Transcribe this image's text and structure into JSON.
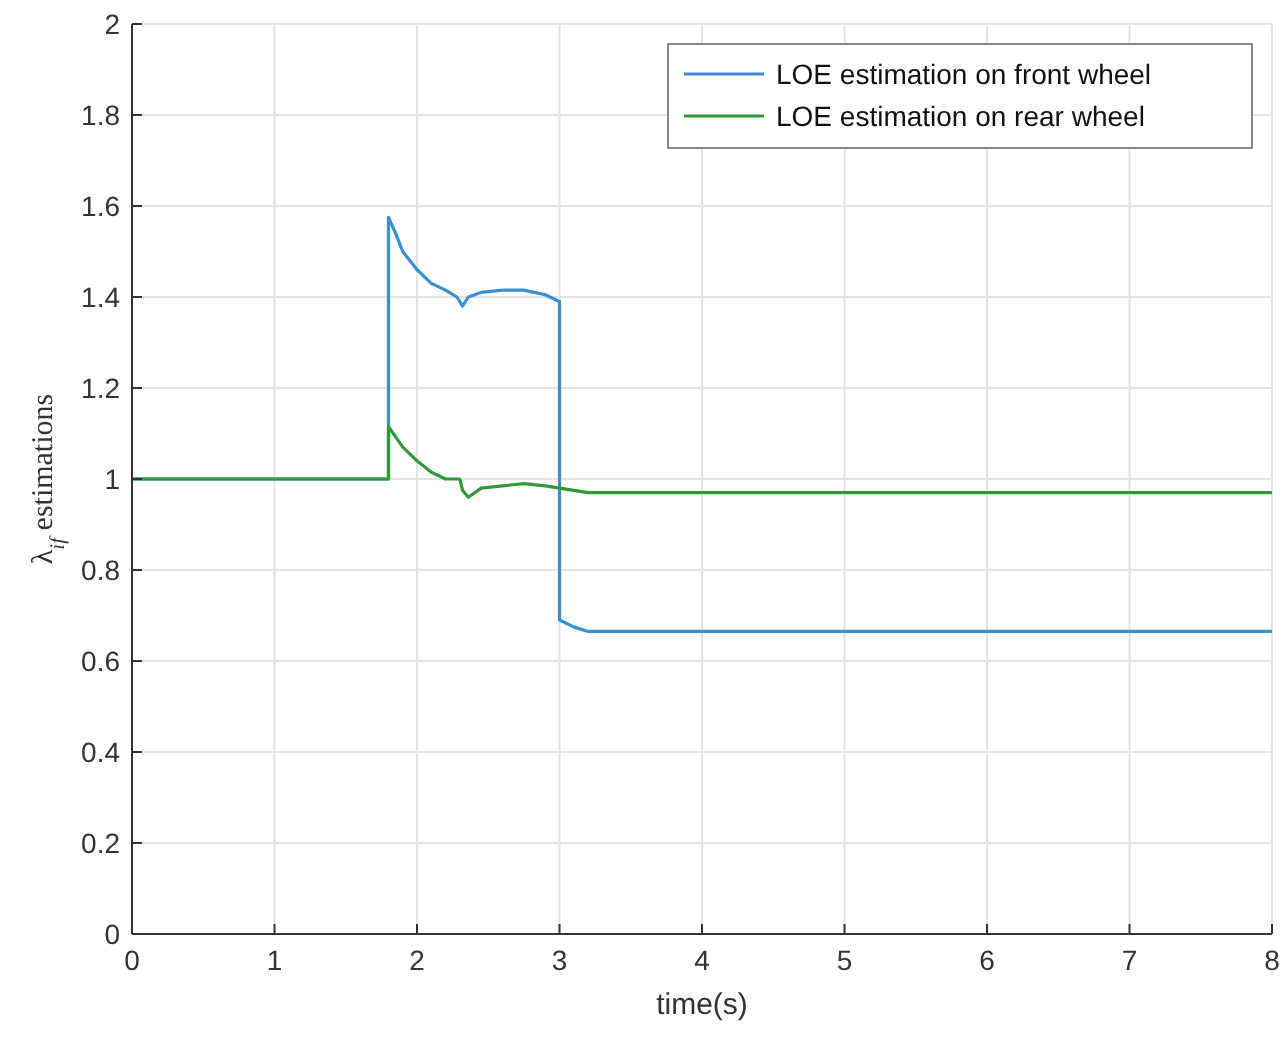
{
  "chart_data": {
    "type": "line",
    "xlabel": "time(s)",
    "ylabel": "λ$_{if}$ estimations",
    "xlim": [
      0,
      8
    ],
    "ylim": [
      0,
      2
    ],
    "xticks": [
      0,
      1,
      2,
      3,
      4,
      5,
      6,
      7,
      8
    ],
    "yticks": [
      0,
      0.2,
      0.4,
      0.6,
      0.8,
      1,
      1.2,
      1.4,
      1.6,
      1.8,
      2
    ],
    "grid": true,
    "legend": "top right",
    "line_style": "solid",
    "marker": "none",
    "series": [
      {
        "name": "LOE estimation on front wheel",
        "color": "#3a8fd4",
        "x": [
          0,
          1.8,
          1.8,
          1.85,
          1.9,
          2.0,
          2.1,
          2.2,
          2.28,
          2.32,
          2.36,
          2.45,
          2.6,
          2.75,
          2.9,
          3.0,
          3.0,
          3.1,
          3.2,
          8
        ],
        "values": [
          1,
          1,
          1.575,
          1.54,
          1.5,
          1.46,
          1.43,
          1.415,
          1.4,
          1.38,
          1.4,
          1.41,
          1.415,
          1.415,
          1.405,
          1.39,
          0.69,
          0.675,
          0.665,
          0.665
        ]
      },
      {
        "name": "LOE estimation on rear wheel",
        "color": "#2e9a3a",
        "x": [
          0,
          1.8,
          1.8,
          1.9,
          2.0,
          2.1,
          2.2,
          2.3,
          2.32,
          2.36,
          2.45,
          2.6,
          2.75,
          2.9,
          3.0,
          3.1,
          3.2,
          8
        ],
        "values": [
          1,
          1,
          1.115,
          1.07,
          1.04,
          1.015,
          1.0,
          1.0,
          0.975,
          0.96,
          0.98,
          0.985,
          0.99,
          0.985,
          0.98,
          0.975,
          0.97,
          0.97
        ]
      }
    ]
  }
}
